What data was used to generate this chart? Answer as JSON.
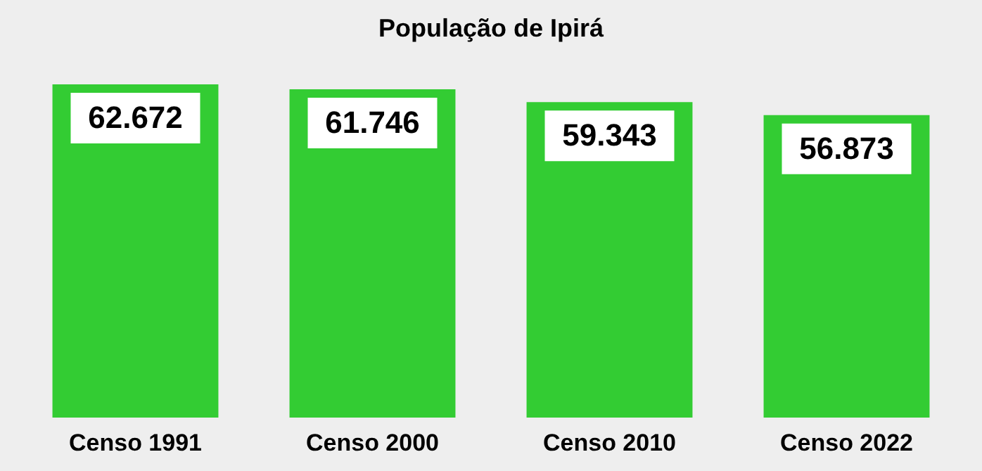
{
  "chart_data": {
    "type": "bar",
    "title": "População de Ipirá",
    "categories": [
      "Censo 1991",
      "Censo 2000",
      "Censo 2010",
      "Censo 2022"
    ],
    "values": [
      62672,
      61746,
      59343,
      56873
    ],
    "value_labels": [
      "62.672",
      "61.746",
      "59.343",
      "56.873"
    ],
    "color": "#33cc33"
  }
}
